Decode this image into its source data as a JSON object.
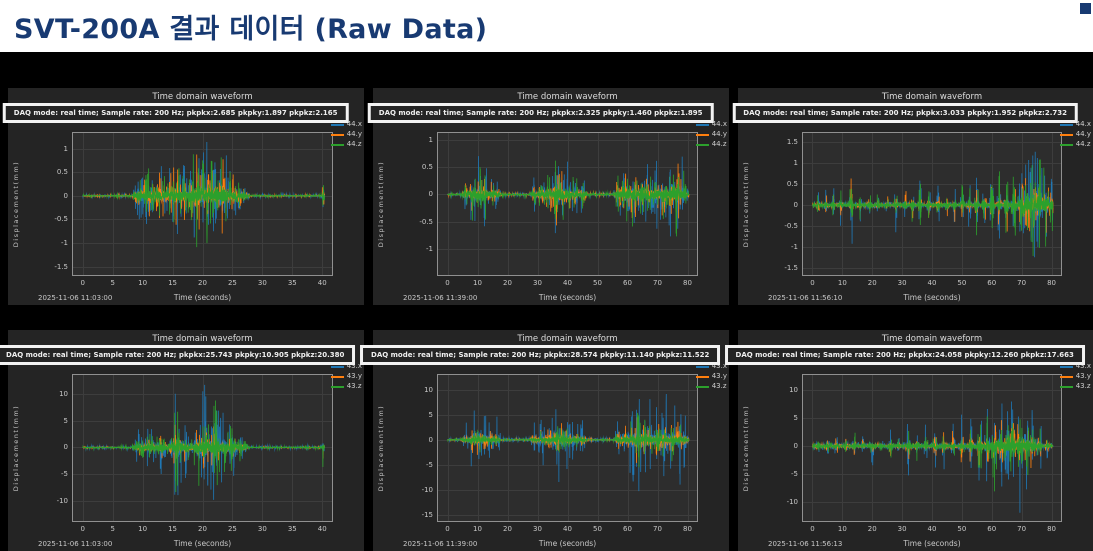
{
  "header": {
    "title": "SVT-200A 결과 데이터 (Raw Data)",
    "title_color": "#183a72"
  },
  "colors": {
    "page_bg": "#000000",
    "panel_bg": "#242424",
    "axes_bg": "#2d2d2d",
    "grid": "#3d3d3d",
    "spine": "#909090",
    "text": "#c8c8c8",
    "series_blue": "#1f77b4",
    "series_orange": "#ff7f0e",
    "series_green": "#2ca02c"
  },
  "chart_data": [
    {
      "type": "line",
      "title": "Time domain waveform",
      "info": "DAQ mode: real time; Sample rate: 200 Hz; pkpkx:2.685 pkpky:1.897 pkpkz:2.165",
      "timestamp": "2025-11-06 11:03:00",
      "xlabel": "Time (seconds)",
      "ylabel": "Displacement(mm)",
      "xlim": [
        -1.8,
        41.8
      ],
      "xdata": [
        0,
        40.4
      ],
      "xticks": [
        0,
        5,
        10,
        15,
        20,
        25,
        30,
        35,
        40
      ],
      "ylim": [
        -1.7,
        1.35
      ],
      "yticks": [
        1,
        0.5,
        0,
        -0.5,
        -1,
        -1.5
      ],
      "series": [
        {
          "name": "44.x",
          "color": "#1f77b4",
          "pkpk": 2.685
        },
        {
          "name": "44.y",
          "color": "#ff7f0e",
          "pkpk": 1.897
        },
        {
          "name": "44.z",
          "color": "#2ca02c",
          "pkpk": 2.165
        }
      ],
      "env_base": 0.02,
      "envelope": [
        [
          9.5,
          0.8,
          0.45
        ],
        [
          11,
          1.2,
          0.5
        ],
        [
          13,
          1.2,
          0.5
        ],
        [
          15.5,
          1.3,
          0.75
        ],
        [
          17,
          1,
          0.6
        ],
        [
          19,
          1.2,
          1.0
        ],
        [
          20.5,
          1,
          0.95
        ],
        [
          22,
          1.2,
          0.8
        ],
        [
          23.5,
          1,
          0.85
        ],
        [
          25,
          1,
          0.5
        ],
        [
          26.5,
          0.8,
          0.35
        ],
        [
          40.2,
          0.2,
          0.6
        ]
      ],
      "seed": 1
    },
    {
      "type": "line",
      "title": "Time domain waveform",
      "info": "DAQ mode: real time; Sample rate: 200 Hz; pkpkx:2.325 pkpky:1.460 pkpkz:1.895",
      "timestamp": "2025-11-06 11:39:00",
      "xlabel": "Time (seconds)",
      "ylabel": "Displacement(mm)",
      "xlim": [
        -3.5,
        83.5
      ],
      "xdata": [
        0,
        80.5
      ],
      "xticks": [
        0,
        10,
        20,
        30,
        40,
        50,
        60,
        70,
        80
      ],
      "ylim": [
        -1.5,
        1.15
      ],
      "yticks": [
        1,
        0.5,
        0,
        -0.5,
        -1
      ],
      "series": [
        {
          "name": "44.x",
          "color": "#1f77b4",
          "pkpk": 2.325
        },
        {
          "name": "44.y",
          "color": "#ff7f0e",
          "pkpk": 1.46
        },
        {
          "name": "44.z",
          "color": "#2ca02c",
          "pkpk": 1.895
        }
      ],
      "env_base": 0.03,
      "envelope": [
        [
          6,
          1,
          0.3
        ],
        [
          8.5,
          1.2,
          0.55
        ],
        [
          10.5,
          1.5,
          0.65
        ],
        [
          12.5,
          1.2,
          0.55
        ],
        [
          14.5,
          1.2,
          0.4
        ],
        [
          16.5,
          1,
          0.3
        ],
        [
          29,
          1,
          0.3
        ],
        [
          31.5,
          1.2,
          0.4
        ],
        [
          34,
          1.5,
          0.5
        ],
        [
          36.5,
          1.2,
          0.9
        ],
        [
          38,
          1,
          0.7
        ],
        [
          40,
          1.5,
          0.55
        ],
        [
          42.5,
          1.2,
          0.45
        ],
        [
          45,
          1,
          0.35
        ],
        [
          57,
          1.2,
          0.4
        ],
        [
          59.5,
          1.5,
          0.55
        ],
        [
          62,
          1.5,
          0.7
        ],
        [
          64.5,
          1.5,
          0.65
        ],
        [
          67,
          1.5,
          0.6
        ],
        [
          69.5,
          1.5,
          0.6
        ],
        [
          72,
          1.5,
          0.65
        ],
        [
          74.5,
          1.2,
          0.75
        ],
        [
          76.5,
          1.2,
          0.9
        ],
        [
          78.5,
          1.2,
          0.6
        ]
      ],
      "seed": 2
    },
    {
      "type": "line",
      "title": "Time domain waveform",
      "info": "DAQ mode: real time; Sample rate: 200 Hz; pkpkx:3.033 pkpky:1.952 pkpkz:2.732",
      "timestamp": "2025-11-06 11:56:10",
      "xlabel": "Time (seconds)",
      "ylabel": "Displacement(mm)",
      "xlim": [
        -3.5,
        83.5
      ],
      "xdata": [
        0,
        80.5
      ],
      "xticks": [
        0,
        10,
        20,
        30,
        40,
        50,
        60,
        70,
        80
      ],
      "ylim": [
        -1.7,
        1.75
      ],
      "yticks": [
        1.5,
        1,
        0.5,
        0,
        -0.5,
        -1,
        -1.5
      ],
      "series": [
        {
          "name": "44.x",
          "color": "#1f77b4",
          "pkpk": 3.033
        },
        {
          "name": "44.y",
          "color": "#ff7f0e",
          "pkpk": 1.952
        },
        {
          "name": "44.z",
          "color": "#2ca02c",
          "pkpk": 2.732
        }
      ],
      "env_base": 0.05,
      "envelope": [
        [
          2,
          0.4,
          0.3
        ],
        [
          4.5,
          0.4,
          0.35
        ],
        [
          7,
          0.4,
          0.3
        ],
        [
          9.5,
          0.5,
          0.35
        ],
        [
          13,
          0.5,
          0.8
        ],
        [
          16,
          0.4,
          0.3
        ],
        [
          19,
          0.5,
          0.35
        ],
        [
          22,
          0.4,
          0.4
        ],
        [
          25,
          0.5,
          0.3
        ],
        [
          28,
          0.5,
          0.45
        ],
        [
          31,
          0.5,
          0.5
        ],
        [
          33.5,
          0.4,
          0.4
        ],
        [
          36,
          0.5,
          0.5
        ],
        [
          39,
          0.5,
          0.45
        ],
        [
          42,
          0.5,
          0.5
        ],
        [
          45,
          0.5,
          0.4
        ],
        [
          47.5,
          0.5,
          0.45
        ],
        [
          50,
          0.5,
          0.5
        ],
        [
          52.5,
          0.5,
          0.45
        ],
        [
          55,
          0.6,
          0.5
        ],
        [
          57.5,
          0.6,
          0.55
        ],
        [
          60,
          0.6,
          0.6
        ],
        [
          62.5,
          0.6,
          0.6
        ],
        [
          65,
          0.7,
          0.65
        ],
        [
          67.5,
          0.8,
          0.7
        ],
        [
          70,
          1,
          0.8
        ],
        [
          72,
          1.2,
          0.9
        ],
        [
          74,
          1.4,
          1.0
        ],
        [
          76,
          1.4,
          1.0
        ],
        [
          78,
          1.2,
          0.85
        ],
        [
          80,
          0.8,
          0.6
        ]
      ],
      "seed": 3
    },
    {
      "type": "line",
      "title": "Time domain waveform",
      "info": "DAQ mode: real time; Sample rate: 200 Hz; pkpkx:25.743 pkpky:10.905 pkpkz:20.380",
      "timestamp": "2025-11-06 11:03:00",
      "xlabel": "Time (seconds)",
      "ylabel": "Displacement(mm)",
      "xlim": [
        -1.8,
        41.8
      ],
      "xdata": [
        0,
        40.4
      ],
      "xticks": [
        0,
        5,
        10,
        15,
        20,
        25,
        30,
        35,
        40
      ],
      "ylim": [
        -14,
        13.8
      ],
      "yticks": [
        10,
        5,
        0,
        -5,
        -10
      ],
      "series": [
        {
          "name": "43.x",
          "color": "#1f77b4",
          "pkpk": 25.743
        },
        {
          "name": "43.y",
          "color": "#ff7f0e",
          "pkpk": 10.905
        },
        {
          "name": "43.z",
          "color": "#2ca02c",
          "pkpk": 20.38
        }
      ],
      "env_base": 0.02,
      "envelope": [
        [
          9.5,
          0.8,
          0.3
        ],
        [
          11,
          1.2,
          0.35
        ],
        [
          13,
          1.2,
          0.4
        ],
        [
          15.8,
          1.0,
          0.85
        ],
        [
          17,
          1,
          0.5
        ],
        [
          19.5,
          1,
          0.8
        ],
        [
          20.3,
          0.8,
          1.0
        ],
        [
          22,
          1,
          0.9
        ],
        [
          23.5,
          1,
          0.6
        ],
        [
          25,
          1,
          0.45
        ],
        [
          26.5,
          0.8,
          0.3
        ],
        [
          40.2,
          0.2,
          0.45
        ]
      ],
      "seed": 4
    },
    {
      "type": "line",
      "title": "Time domain waveform",
      "info": "DAQ mode: real time; Sample rate: 200 Hz; pkpkx:28.574 pkpky:11.140 pkpkz:11.522",
      "timestamp": "2025-11-06 11:39:00",
      "xlabel": "Time (seconds)",
      "ylabel": "Displacement(mm)",
      "xlim": [
        -3.5,
        83.5
      ],
      "xdata": [
        0,
        80.5
      ],
      "xticks": [
        0,
        10,
        20,
        30,
        40,
        50,
        60,
        70,
        80
      ],
      "ylim": [
        -16.5,
        13.2
      ],
      "yticks": [
        10,
        5,
        0,
        -5,
        -10,
        -15
      ],
      "series": [
        {
          "name": "43.x",
          "color": "#1f77b4",
          "pkpk": 28.574
        },
        {
          "name": "43.y",
          "color": "#ff7f0e",
          "pkpk": 11.14
        },
        {
          "name": "43.z",
          "color": "#2ca02c",
          "pkpk": 11.522
        }
      ],
      "env_base": 0.03,
      "envelope": [
        [
          6,
          1,
          0.3
        ],
        [
          8.5,
          1.2,
          0.5
        ],
        [
          10.5,
          1.5,
          0.6
        ],
        [
          12.5,
          1.2,
          0.5
        ],
        [
          14.5,
          1.2,
          0.4
        ],
        [
          16.5,
          1,
          0.3
        ],
        [
          29,
          1,
          0.3
        ],
        [
          31.5,
          1.2,
          0.4
        ],
        [
          34,
          1.5,
          0.5
        ],
        [
          36.5,
          1.2,
          0.75
        ],
        [
          38,
          1,
          0.6
        ],
        [
          40,
          1.5,
          0.5
        ],
        [
          42.5,
          1.2,
          0.4
        ],
        [
          45,
          1,
          0.3
        ],
        [
          57,
          1.2,
          0.4
        ],
        [
          59.5,
          1.5,
          0.55
        ],
        [
          61.5,
          1.5,
          0.7
        ],
        [
          63.5,
          1.2,
          1.0
        ],
        [
          65.5,
          1.5,
          0.7
        ],
        [
          67.5,
          1.5,
          0.6
        ],
        [
          70,
          1.5,
          0.6
        ],
        [
          72.5,
          1.5,
          0.65
        ],
        [
          75,
          1.2,
          0.8
        ],
        [
          77,
          1.2,
          0.7
        ],
        [
          79,
          1,
          0.5
        ]
      ],
      "seed": 5
    },
    {
      "type": "line",
      "title": "Time domain waveform",
      "info": "DAQ mode: real time; Sample rate: 200 Hz; pkpkx:24.058 pkpky:12.260 pkpkz:17.663",
      "timestamp": "2025-11-06 11:56:13",
      "xlabel": "Time (seconds)",
      "ylabel": "Displacement(mm)",
      "xlim": [
        -3.5,
        83.5
      ],
      "xdata": [
        0,
        80.5
      ],
      "xticks": [
        0,
        10,
        20,
        30,
        40,
        50,
        60,
        70,
        80
      ],
      "ylim": [
        -13.5,
        12.8
      ],
      "yticks": [
        10,
        5,
        0,
        -5,
        -10
      ],
      "series": [
        {
          "name": "43.x",
          "color": "#1f77b4",
          "pkpk": 24.058
        },
        {
          "name": "43.y",
          "color": "#ff7f0e",
          "pkpk": 12.26
        },
        {
          "name": "43.z",
          "color": "#2ca02c",
          "pkpk": 17.663
        }
      ],
      "env_base": 0.06,
      "envelope": [
        [
          2,
          0.5,
          0.25
        ],
        [
          5,
          0.5,
          0.3
        ],
        [
          8,
          0.5,
          0.35
        ],
        [
          11,
          0.5,
          0.3
        ],
        [
          14,
          0.5,
          0.4
        ],
        [
          17,
          0.5,
          0.3
        ],
        [
          20,
          0.5,
          0.35
        ],
        [
          23,
          0.5,
          0.3
        ],
        [
          26,
          0.5,
          0.35
        ],
        [
          29,
          0.5,
          0.3
        ],
        [
          32,
          0.6,
          0.45
        ],
        [
          35,
          0.5,
          0.35
        ],
        [
          38,
          0.6,
          0.4
        ],
        [
          41,
          0.6,
          0.45
        ],
        [
          44,
          0.6,
          0.4
        ],
        [
          47,
          0.6,
          0.45
        ],
        [
          50,
          0.7,
          0.5
        ],
        [
          53,
          0.7,
          0.55
        ],
        [
          56,
          0.8,
          0.65
        ],
        [
          58.5,
          0.8,
          0.6
        ],
        [
          61,
          1,
          0.9
        ],
        [
          63,
          1,
          0.8
        ],
        [
          65,
          1,
          0.75
        ],
        [
          67,
          1,
          0.8
        ],
        [
          69.5,
          1.2,
          1.0
        ],
        [
          71.5,
          1,
          0.85
        ],
        [
          73.5,
          1,
          0.7
        ],
        [
          76,
          0.8,
          0.5
        ],
        [
          78.5,
          0.6,
          0.35
        ]
      ],
      "seed": 6
    }
  ]
}
